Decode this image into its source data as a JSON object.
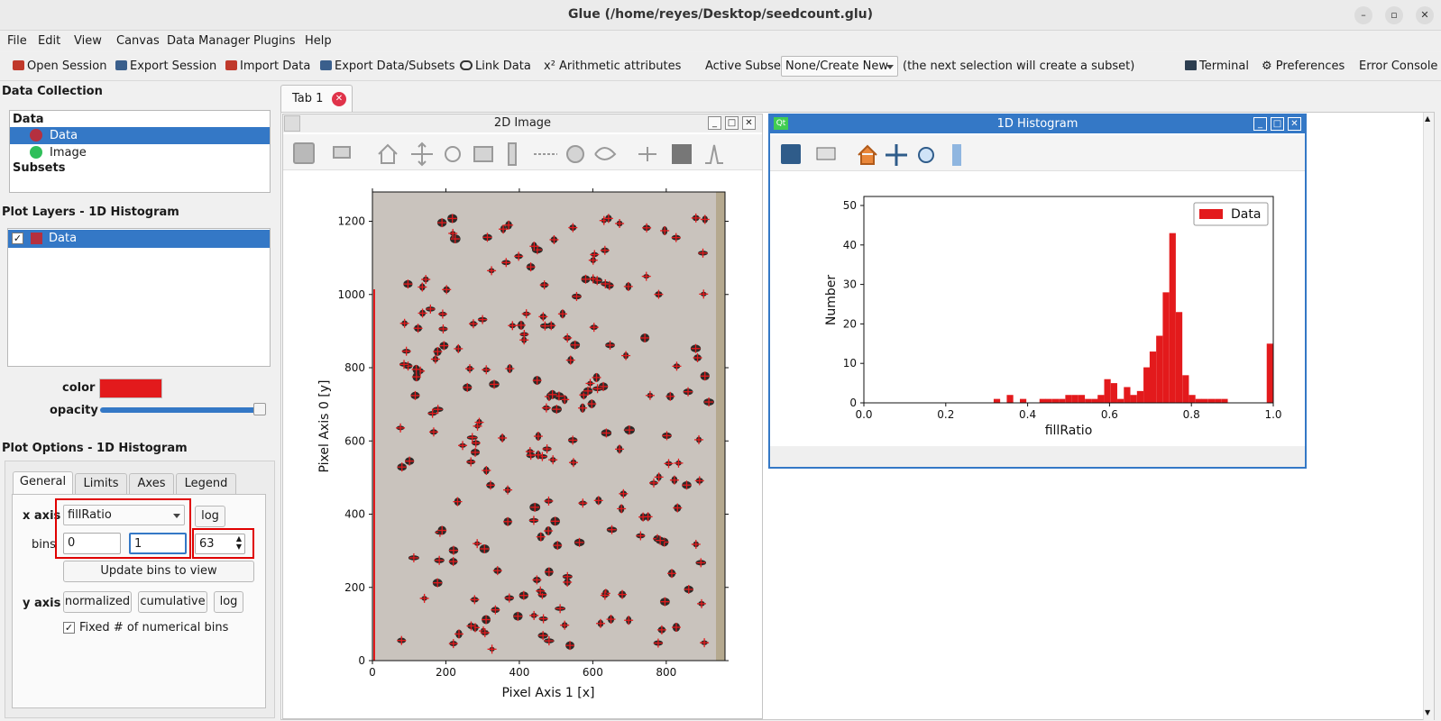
{
  "window": {
    "title": "Glue (/home/reyes/Desktop/seedcount.glu)"
  },
  "menu": [
    "File",
    "Edit",
    "View",
    "Canvas",
    "Data Manager",
    "Plugins",
    "Help"
  ],
  "toolbar": {
    "open_session": "Open Session",
    "export_session": "Export Session",
    "import_data": "Import Data",
    "export_data": "Export Data/Subsets",
    "link_data": "Link Data",
    "arithmetic": "x² Arithmetic attributes",
    "active_subset_label": "Active Subset:",
    "active_subset_value": "None/Create New",
    "subset_hint": "(the next selection will create a subset)",
    "terminal": "Terminal",
    "preferences": "Preferences",
    "error_console": "Error Console"
  },
  "data_collection": {
    "title": "Data Collection",
    "data_header": "Data",
    "items": [
      {
        "label": "Data",
        "color": "#b5303f"
      },
      {
        "label": "Image",
        "color": "#2fbf5a"
      }
    ],
    "subsets_header": "Subsets"
  },
  "plot_layers": {
    "title": "Plot Layers - 1D Histogram",
    "items": [
      {
        "label": "Data",
        "checked": "✓",
        "color": "#b5303f"
      }
    ],
    "color_label": "color",
    "color_value": "#e31a1c",
    "opacity_label": "opacity",
    "opacity_value": 1.0
  },
  "plot_options": {
    "title": "Plot Options - 1D Histogram",
    "tabs": [
      "General",
      "Limits",
      "Axes",
      "Legend"
    ],
    "x_axis_label": "x axis",
    "x_attribute": "fillRatio",
    "log_label": "log",
    "bins_label": "bins",
    "bin_min": "0",
    "bin_max": "1",
    "n_bins": "63",
    "update_bins": "Update bins to view",
    "y_axis_label": "y axis",
    "normalized": "normalized",
    "cumulative": "cumulative",
    "y_log": "log",
    "fixed_bins_label": "Fixed # of numerical bins",
    "fixed_bins_checked": "✓"
  },
  "tabs": {
    "tab1": "Tab 1"
  },
  "image_viewer": {
    "title": "2D Image",
    "xlabel": "Pixel Axis 1 [x]",
    "ylabel": "Pixel Axis 0 [y]",
    "xticks": [
      "0",
      "200",
      "400",
      "600",
      "800"
    ],
    "yticks": [
      "0",
      "200",
      "400",
      "600",
      "800",
      "1000",
      "1200"
    ]
  },
  "histogram_viewer": {
    "qt_badge": "Qt",
    "title": "1D Histogram"
  },
  "chart_data": {
    "type": "bar",
    "xlabel": "fillRatio",
    "ylabel": "Number",
    "xlim": [
      0.0,
      1.0
    ],
    "ylim": [
      0,
      50
    ],
    "xticks": [
      "0.0",
      "0.2",
      "0.4",
      "0.6",
      "0.8",
      "1.0"
    ],
    "yticks": [
      "0",
      "10",
      "20",
      "30",
      "40",
      "50"
    ],
    "legend": {
      "label": "Data",
      "placement": "top-right"
    },
    "color": "#e31a1c",
    "bin_width": 0.015873,
    "bins": [
      {
        "x": 0.317,
        "y": 1
      },
      {
        "x": 0.349,
        "y": 2
      },
      {
        "x": 0.381,
        "y": 1
      },
      {
        "x": 0.429,
        "y": 1
      },
      {
        "x": 0.444,
        "y": 1
      },
      {
        "x": 0.46,
        "y": 1
      },
      {
        "x": 0.476,
        "y": 1
      },
      {
        "x": 0.492,
        "y": 2
      },
      {
        "x": 0.508,
        "y": 2
      },
      {
        "x": 0.524,
        "y": 2
      },
      {
        "x": 0.54,
        "y": 1
      },
      {
        "x": 0.556,
        "y": 1
      },
      {
        "x": 0.571,
        "y": 2
      },
      {
        "x": 0.587,
        "y": 6
      },
      {
        "x": 0.603,
        "y": 5
      },
      {
        "x": 0.619,
        "y": 1
      },
      {
        "x": 0.635,
        "y": 4
      },
      {
        "x": 0.651,
        "y": 2
      },
      {
        "x": 0.667,
        "y": 3
      },
      {
        "x": 0.683,
        "y": 9
      },
      {
        "x": 0.698,
        "y": 13
      },
      {
        "x": 0.714,
        "y": 17
      },
      {
        "x": 0.73,
        "y": 28
      },
      {
        "x": 0.746,
        "y": 43
      },
      {
        "x": 0.762,
        "y": 23
      },
      {
        "x": 0.778,
        "y": 7
      },
      {
        "x": 0.794,
        "y": 2
      },
      {
        "x": 0.81,
        "y": 1
      },
      {
        "x": 0.825,
        "y": 1
      },
      {
        "x": 0.841,
        "y": 1
      },
      {
        "x": 0.857,
        "y": 1
      },
      {
        "x": 0.873,
        "y": 1
      },
      {
        "x": 0.984,
        "y": 15
      }
    ]
  }
}
